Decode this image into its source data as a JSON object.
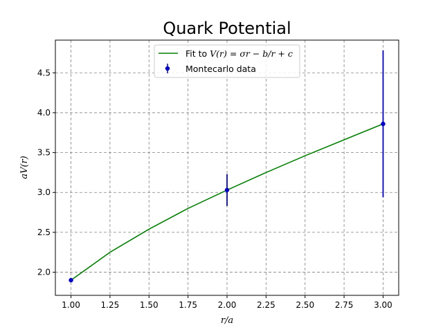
{
  "chart_data": {
    "type": "line",
    "title": "Quark Potential",
    "xlabel": "r/a",
    "ylabel": "aV(r)",
    "xlim": [
      0.9,
      3.1
    ],
    "ylim": [
      1.71,
      4.91
    ],
    "x_ticks": [
      1.0,
      1.25,
      1.5,
      1.75,
      2.0,
      2.25,
      2.5,
      2.75,
      3.0
    ],
    "x_tick_labels": [
      "1.00",
      "1.25",
      "1.50",
      "1.75",
      "2.00",
      "2.25",
      "2.50",
      "2.75",
      "3.00"
    ],
    "y_ticks": [
      2.0,
      2.5,
      3.0,
      3.5,
      4.0,
      4.5
    ],
    "y_tick_labels": [
      "2.0",
      "2.5",
      "3.0",
      "3.5",
      "4.0",
      "4.5"
    ],
    "grid": true,
    "legend_position": "top-center",
    "series": [
      {
        "name": "Fit to V(r) = σr − b/r + c",
        "kind": "line",
        "color": "#008000",
        "x": [
          1.0,
          1.25,
          1.5,
          1.75,
          2.0,
          2.25,
          2.5,
          2.75,
          3.0
        ],
        "y": [
          1.9,
          2.25,
          2.54,
          2.8,
          3.03,
          3.25,
          3.46,
          3.66,
          3.86
        ]
      },
      {
        "name": "Montecarlo data",
        "kind": "errorbar",
        "color": "#0000cc",
        "x": [
          1.0,
          2.0,
          3.0
        ],
        "y": [
          1.9,
          3.03,
          3.86
        ],
        "yerr": [
          0.02,
          0.2,
          0.92
        ]
      }
    ]
  },
  "legend": {
    "fit_label_prefix": "Fit to ",
    "fit_label_math": "V(r) = σr − b/r + c",
    "data_label": "Montecarlo data"
  }
}
